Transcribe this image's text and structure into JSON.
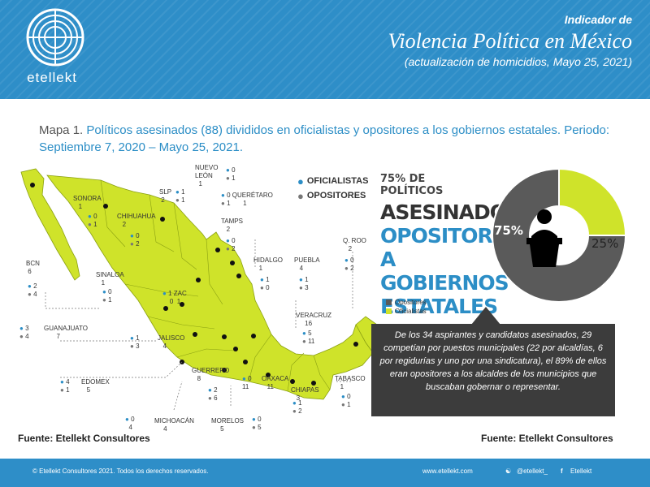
{
  "header": {
    "logo_text": "etellekt",
    "line1": "Indicador de",
    "line2": "Violencia Política en México",
    "line3": "(actualización de homicidios, Mayo 25, 2021)"
  },
  "title": {
    "prefix": "Mapa 1.",
    "text": "Políticos asesinados (88)  divididos en oficialistas y opositores a los gobiernos estatales. Periodo: Septiembre 7, 2020 – Mayo 25, 2021."
  },
  "legend": {
    "oficialistas": "OFICIALISTAS",
    "opositores": "OPOSITORES"
  },
  "headline": {
    "l1": "75% DE POLÍTICOS",
    "l2": "ASESINADOS,",
    "l3": "OPOSITORES",
    "l4": "A GOBIERNOS",
    "l5": "ESTATALES"
  },
  "chart_data": {
    "type": "pie",
    "categories": [
      "Opositores",
      "Oficialistas"
    ],
    "values": [
      75,
      25
    ],
    "labels": [
      "75%",
      "25%"
    ],
    "colors": [
      "#5a5a5a",
      "#cfe32a"
    ]
  },
  "states": [
    {
      "name": "NUEVO LEÓN",
      "total": "1",
      "ofi": "0",
      "opo": "1"
    },
    {
      "name": "SLP",
      "total": "2",
      "ofi": "1",
      "opo": "1"
    },
    {
      "name": "QUERÉTARO",
      "total": "1",
      "ofi": "0",
      "opo": "1"
    },
    {
      "name": "SONORA",
      "total": "1",
      "ofi": "0",
      "opo": "1"
    },
    {
      "name": "CHIHUAHUA",
      "total": "2",
      "ofi": "0",
      "opo": "2"
    },
    {
      "name": "TAMPS",
      "total": "2",
      "ofi": "0",
      "opo": "2"
    },
    {
      "name": "BCN",
      "total": "6",
      "ofi": "2",
      "opo": "4"
    },
    {
      "name": "SINALOA",
      "total": "1",
      "ofi": "0",
      "opo": "1"
    },
    {
      "name": "HIDALGO",
      "total": "1",
      "ofi": "1",
      "opo": "0"
    },
    {
      "name": "PUEBLA",
      "total": "4",
      "ofi": "1",
      "opo": "3"
    },
    {
      "name": "Q. ROO",
      "total": "2",
      "ofi": "0",
      "opo": "2"
    },
    {
      "name": "ZAC",
      "total": "1",
      "ofi": "0",
      "opo": "1"
    },
    {
      "name": "GUANAJUATO",
      "total": "7",
      "ofi": "3",
      "opo": "4"
    },
    {
      "name": "JALISCO",
      "total": "4",
      "ofi": "1",
      "opo": "3"
    },
    {
      "name": "VERACRUZ",
      "total": "16",
      "ofi": "5",
      "opo": "11"
    },
    {
      "name": "EDOMEX",
      "total": "5",
      "ofi": "4",
      "opo": "1"
    },
    {
      "name": "GUERRERO",
      "total": "8",
      "ofi": "2",
      "opo": "6"
    },
    {
      "name": "OAXACA",
      "total": "11",
      "ofi": "0",
      "opo": "11"
    },
    {
      "name": "TABASCO",
      "total": "1",
      "ofi": "0",
      "opo": "1"
    },
    {
      "name": "CHIAPAS",
      "total": "3",
      "ofi": "1",
      "opo": "2"
    },
    {
      "name": "MICHOACÁN",
      "total": "4",
      "ofi": "0",
      "opo": "4"
    },
    {
      "name": "MORELOS",
      "total": "5",
      "ofi": "0",
      "opo": "5"
    }
  ],
  "pie_legend": {
    "opositores": "Opositores",
    "oficialistas": "Oficialistas"
  },
  "note": "De los 34 aspirantes y candidatos asesinados, 29 competían por puestos municipales (22 por alcaldías, 6 por regidurías y uno por una sindicatura), el 89% de ellos eran opositores a los alcaldes de los municipios que buscaban gobernar o representar.",
  "fuente_left": "Fuente: Etellekt Consultores",
  "fuente_right": "Fuente: Etellekt Consultores",
  "footer": {
    "copyright": "© Etellekt Consultores 2021.  Todos los derechos reservados.",
    "website": "www.etellekt.com",
    "twitter": "@etellekt_",
    "facebook": "Etellekt"
  }
}
